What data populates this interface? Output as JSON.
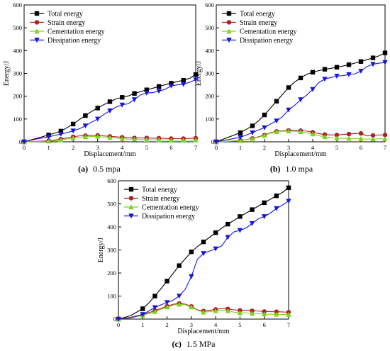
{
  "chart_data": [
    {
      "type": "line",
      "caption_letter": "(a)",
      "caption_text": "0.5 mpa",
      "xlabel": "Displacement/mm",
      "ylabel": "Energy/J",
      "xlim": [
        0,
        7
      ],
      "ylim": [
        0,
        600
      ],
      "xticks": [
        "0",
        "1",
        "2",
        "3",
        "4",
        "5",
        "6",
        "7"
      ],
      "yticks": [
        "0",
        "100",
        "200",
        "300",
        "400",
        "500",
        "600"
      ],
      "legend_position": "top-left",
      "x": [
        0,
        0.5,
        1.0,
        1.25,
        1.5,
        1.75,
        2.0,
        2.25,
        2.5,
        2.75,
        3.0,
        3.25,
        3.5,
        3.75,
        4.0,
        4.25,
        4.5,
        4.75,
        5.0,
        5.25,
        5.5,
        5.75,
        6.0,
        6.25,
        6.5,
        6.75,
        7.0
      ],
      "series": [
        {
          "name": "Total energy",
          "color": "#000000",
          "marker": "square",
          "values": [
            0,
            15,
            30,
            38,
            47,
            62,
            78,
            97,
            115,
            133,
            148,
            163,
            176,
            188,
            195,
            201,
            212,
            220,
            228,
            235,
            243,
            250,
            257,
            264,
            270,
            278,
            295
          ]
        },
        {
          "name": "Strain energy",
          "color": "#b02020",
          "marker": "circle",
          "values": [
            0,
            2,
            5,
            8,
            12,
            17,
            22,
            26,
            27,
            28,
            28,
            26,
            24,
            22,
            20,
            18,
            17,
            17,
            17,
            16,
            16,
            15,
            14,
            14,
            14,
            15,
            16
          ]
        },
        {
          "name": "Cementation energy",
          "color": "#7ed320",
          "marker": "triangle-up",
          "values": [
            0,
            1,
            3,
            5,
            8,
            12,
            16,
            20,
            22,
            23,
            23,
            21,
            19,
            17,
            14,
            12,
            11,
            10,
            10,
            9,
            9,
            8,
            7,
            7,
            7,
            7,
            8
          ]
        },
        {
          "name": "Dissipation energy",
          "color": "#1515e0",
          "marker": "triangle-down",
          "values": [
            0,
            12,
            22,
            28,
            34,
            40,
            48,
            57,
            70,
            86,
            100,
            120,
            136,
            152,
            162,
            167,
            185,
            206,
            214,
            216,
            222,
            230,
            245,
            250,
            252,
            261,
            272
          ]
        }
      ]
    },
    {
      "type": "line",
      "caption_letter": "(b)",
      "caption_text": "1.0 mpa",
      "xlabel": "Displacement/mm",
      "ylabel": "Energy/J",
      "xlim": [
        0,
        7
      ],
      "ylim": [
        0,
        600
      ],
      "xticks": [
        "0",
        "1",
        "2",
        "3",
        "4",
        "5",
        "6",
        "7"
      ],
      "yticks": [
        "0",
        "100",
        "200",
        "300",
        "400",
        "500",
        "600"
      ],
      "legend_position": "top-left",
      "x": [
        0,
        0.5,
        1.0,
        1.25,
        1.5,
        1.75,
        2.0,
        2.25,
        2.5,
        2.75,
        3.0,
        3.25,
        3.5,
        3.75,
        4.0,
        4.25,
        4.5,
        4.75,
        5.0,
        5.25,
        5.5,
        5.75,
        6.0,
        6.25,
        6.5,
        6.75,
        7.0
      ],
      "series": [
        {
          "name": "Total energy",
          "color": "#000000",
          "marker": "square",
          "values": [
            0,
            20,
            40,
            55,
            70,
            92,
            118,
            148,
            178,
            208,
            238,
            262,
            280,
            296,
            305,
            312,
            318,
            322,
            327,
            332,
            338,
            345,
            352,
            360,
            368,
            377,
            390
          ]
        },
        {
          "name": "Strain energy",
          "color": "#b02020",
          "marker": "circle",
          "values": [
            0,
            2,
            6,
            10,
            15,
            22,
            30,
            40,
            46,
            48,
            50,
            50,
            49,
            47,
            42,
            36,
            32,
            30,
            30,
            32,
            34,
            36,
            37,
            26,
            28,
            30,
            30
          ]
        },
        {
          "name": "Cementation energy",
          "color": "#7ed320",
          "marker": "triangle-up",
          "values": [
            0,
            2,
            5,
            9,
            14,
            20,
            28,
            38,
            44,
            46,
            47,
            46,
            44,
            40,
            34,
            27,
            22,
            18,
            16,
            15,
            15,
            15,
            14,
            12,
            12,
            13,
            13
          ]
        },
        {
          "name": "Dissipation energy",
          "color": "#1515e0",
          "marker": "triangle-down",
          "values": [
            0,
            10,
            20,
            30,
            40,
            52,
            62,
            78,
            92,
            110,
            140,
            160,
            185,
            205,
            230,
            260,
            275,
            282,
            288,
            290,
            295,
            298,
            310,
            330,
            340,
            345,
            348
          ]
        }
      ]
    },
    {
      "type": "line",
      "caption_letter": "(c)",
      "caption_text": "1.5 MPa",
      "xlabel": "Displacement/mm",
      "ylabel": "Energy/J",
      "xlim": [
        0,
        7
      ],
      "ylim": [
        0,
        600
      ],
      "xticks": [
        "0",
        "1",
        "2",
        "3",
        "4",
        "5",
        "6",
        "7"
      ],
      "yticks": [
        "0",
        "100",
        "200",
        "300",
        "400",
        "500",
        "600"
      ],
      "legend_position": "top-left",
      "x": [
        0,
        0.5,
        1.0,
        1.25,
        1.5,
        1.75,
        2.0,
        2.25,
        2.5,
        2.75,
        3.0,
        3.25,
        3.5,
        3.75,
        4.0,
        4.25,
        4.5,
        4.75,
        5.0,
        5.25,
        5.5,
        5.75,
        6.0,
        6.25,
        6.5,
        6.75,
        7.0
      ],
      "series": [
        {
          "name": "Total energy",
          "color": "#000000",
          "marker": "square",
          "values": [
            0,
            15,
            45,
            70,
            100,
            132,
            165,
            198,
            232,
            262,
            292,
            315,
            335,
            355,
            375,
            395,
            412,
            428,
            445,
            460,
            475,
            490,
            505,
            520,
            535,
            550,
            570
          ]
        },
        {
          "name": "Strain energy",
          "color": "#b02020",
          "marker": "circle",
          "values": [
            0,
            8,
            20,
            28,
            36,
            46,
            56,
            64,
            68,
            65,
            55,
            40,
            35,
            38,
            42,
            46,
            44,
            40,
            38,
            38,
            36,
            35,
            33,
            32,
            32,
            31,
            30
          ]
        },
        {
          "name": "Cementation energy",
          "color": "#7ed320",
          "marker": "triangle-up",
          "values": [
            0,
            6,
            16,
            24,
            32,
            42,
            52,
            60,
            64,
            62,
            52,
            38,
            30,
            32,
            36,
            38,
            36,
            30,
            27,
            27,
            25,
            24,
            22,
            21,
            21,
            20,
            20
          ]
        },
        {
          "name": "Dissipation energy",
          "color": "#1515e0",
          "marker": "triangle-down",
          "values": [
            0,
            5,
            20,
            35,
            50,
            62,
            72,
            82,
            100,
            130,
            185,
            260,
            285,
            295,
            305,
            318,
            355,
            378,
            385,
            395,
            415,
            435,
            445,
            460,
            480,
            495,
            512
          ]
        }
      ]
    }
  ]
}
